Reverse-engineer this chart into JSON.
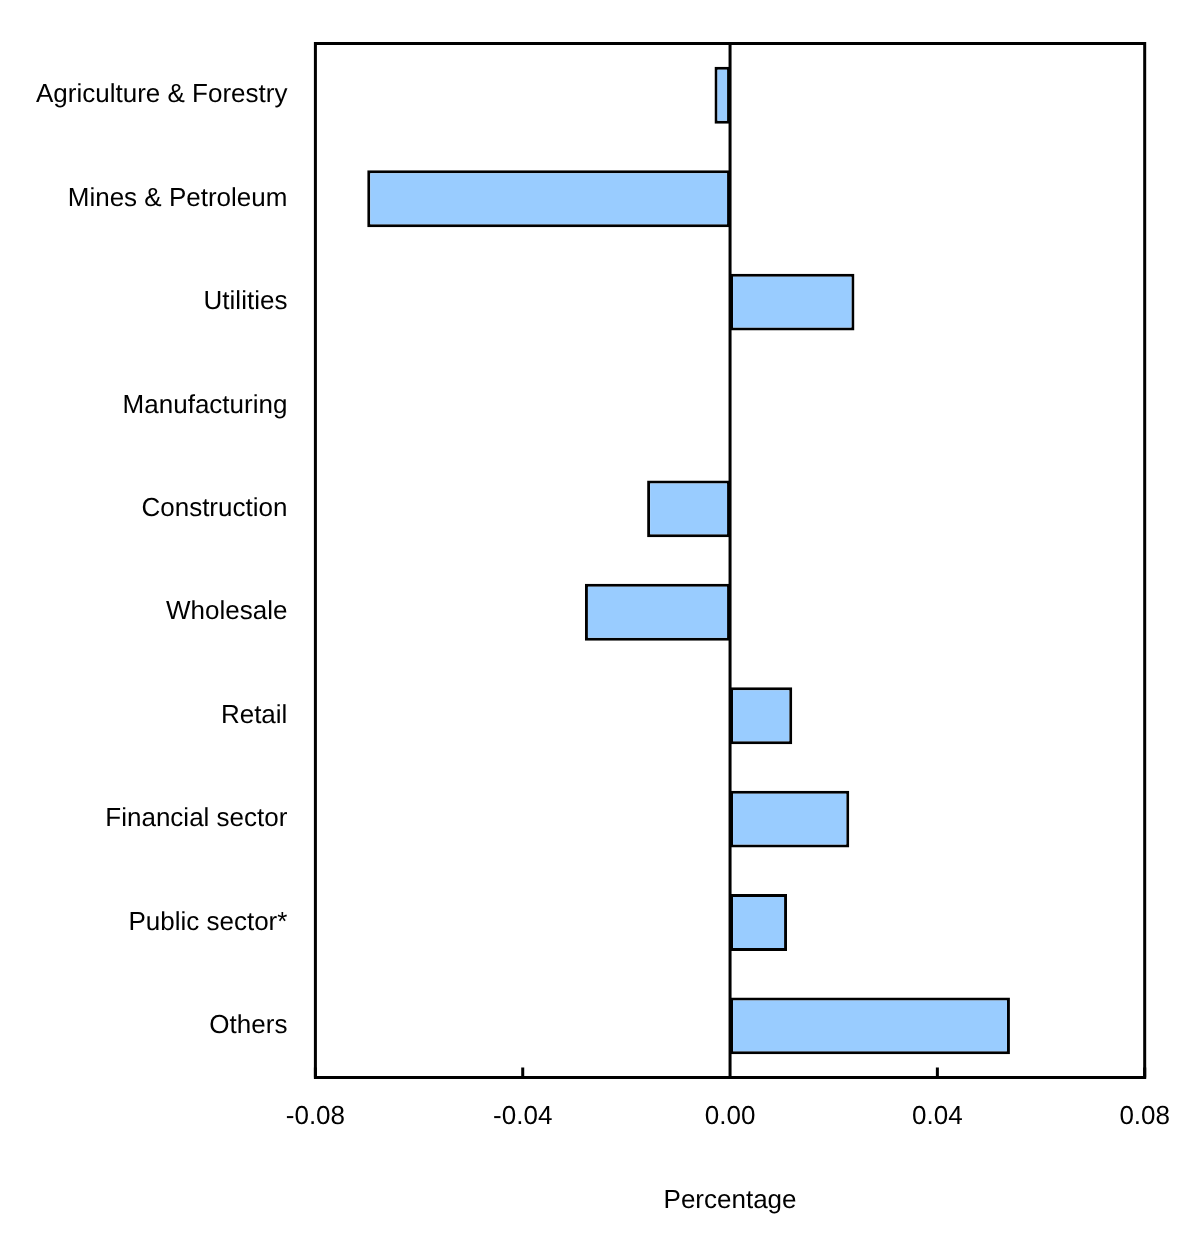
{
  "chart_data": {
    "type": "bar",
    "orientation": "horizontal",
    "xlabel": "Percentage",
    "categories": [
      "Agriculture & Forestry",
      "Mines & Petroleum",
      "Utilities",
      "Manufacturing",
      "Construction",
      "Wholesale",
      "Retail",
      "Financial sector",
      "Public sector*",
      "Others"
    ],
    "values": [
      -0.003,
      -0.07,
      0.024,
      0,
      -0.016,
      -0.028,
      0.012,
      0.023,
      0.011,
      0.054
    ],
    "color": "#99ccff",
    "xlim": [
      -0.08,
      0.08
    ],
    "xticks": [
      {
        "value": -0.08,
        "label": "-0.08"
      },
      {
        "value": -0.04,
        "label": "-0.04"
      },
      {
        "value": 0,
        "label": "0.00"
      },
      {
        "value": 0.04,
        "label": "0.04"
      },
      {
        "value": 0.08,
        "label": "0.08"
      }
    ],
    "ref_lines": [
      {
        "axis": "x",
        "value": 0
      }
    ],
    "legend": false
  }
}
